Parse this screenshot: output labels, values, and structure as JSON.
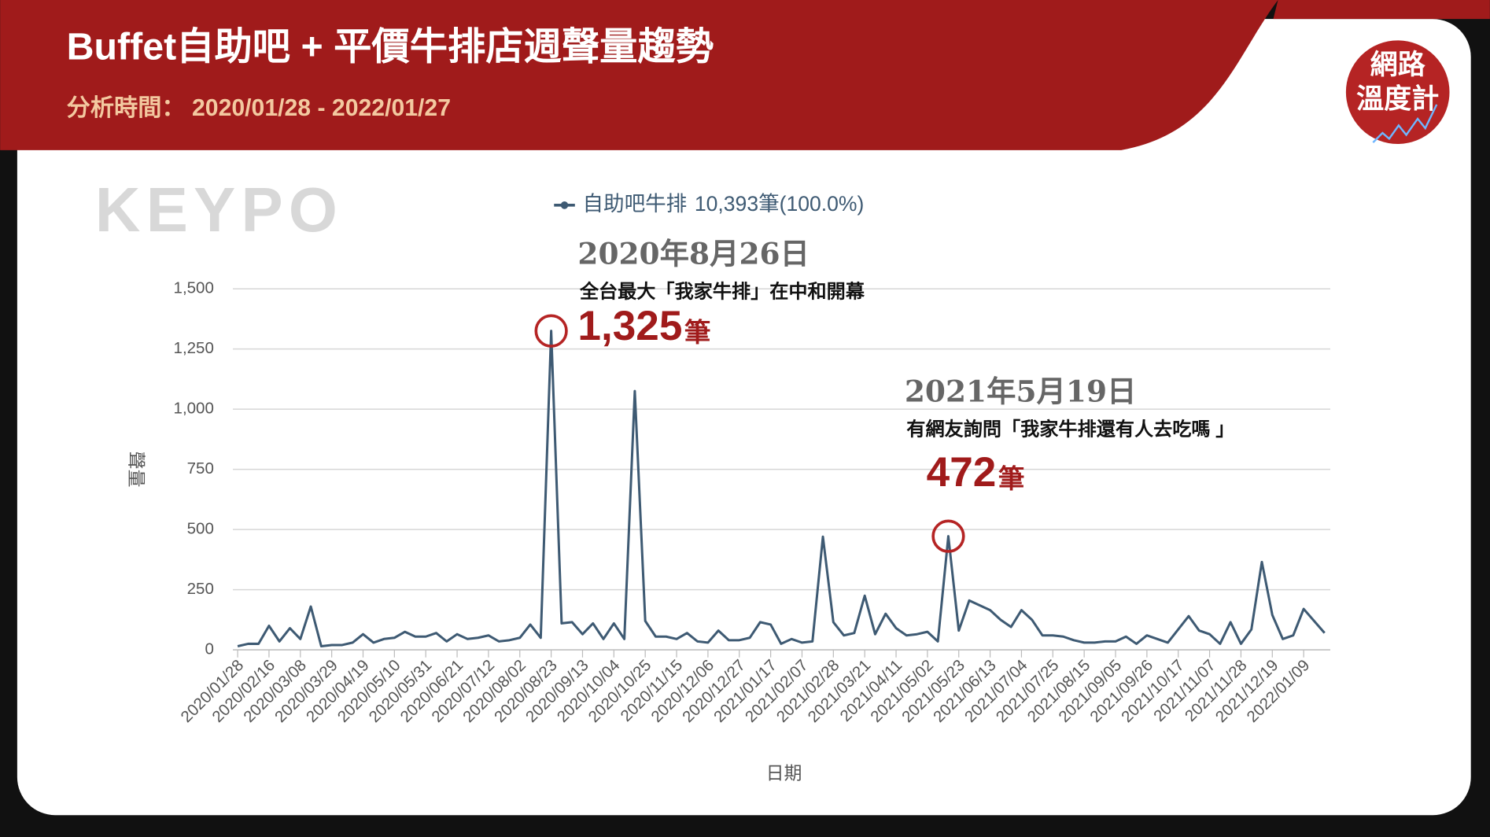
{
  "header": {
    "title": "Buffet自助吧 + 平價牛排店週聲量趨勢",
    "subtitle": "分析時間： 2020/01/28 - 2022/01/27"
  },
  "logo": {
    "line1": "網路",
    "line2": "溫度計"
  },
  "watermark": "KEYPO",
  "chart_data": {
    "type": "line",
    "categories": [
      "2020/01/28",
      null,
      null,
      "2020/02/16",
      null,
      null,
      "2020/03/08",
      null,
      null,
      "2020/03/29",
      null,
      null,
      "2020/04/19",
      null,
      null,
      "2020/05/10",
      null,
      null,
      "2020/05/31",
      null,
      null,
      "2020/06/21",
      null,
      null,
      "2020/07/12",
      null,
      null,
      "2020/08/02",
      null,
      null,
      "2020/08/23",
      null,
      null,
      "2020/09/13",
      null,
      null,
      "2020/10/04",
      null,
      null,
      "2020/10/25",
      null,
      null,
      "2020/11/15",
      null,
      null,
      "2020/12/06",
      null,
      null,
      "2020/12/27",
      null,
      null,
      "2021/01/17",
      null,
      null,
      "2021/02/07",
      null,
      null,
      "2021/02/28",
      null,
      null,
      "2021/03/21",
      null,
      null,
      "2021/04/11",
      null,
      null,
      "2021/05/02",
      null,
      null,
      "2021/05/23",
      null,
      null,
      "2021/06/13",
      null,
      null,
      "2021/07/04",
      null,
      null,
      "2021/07/25",
      null,
      null,
      "2021/08/15",
      null,
      null,
      "2021/09/05",
      null,
      null,
      "2021/09/26",
      null,
      null,
      "2021/10/17",
      null,
      null,
      "2021/11/07",
      null,
      null,
      "2021/11/28",
      null,
      null,
      "2021/12/19",
      null,
      null,
      "2022/01/09",
      null,
      null
    ],
    "series": [
      {
        "name": "自助吧牛排",
        "legend_note": "10,393筆(100.0%)",
        "color": "#3e5a73",
        "values": [
          15,
          25,
          25,
          100,
          35,
          90,
          45,
          180,
          15,
          20,
          20,
          30,
          65,
          30,
          45,
          50,
          75,
          55,
          55,
          70,
          35,
          65,
          45,
          50,
          60,
          35,
          40,
          50,
          105,
          50,
          1325,
          110,
          115,
          65,
          110,
          45,
          110,
          45,
          1075,
          120,
          55,
          55,
          45,
          70,
          35,
          30,
          80,
          40,
          40,
          50,
          115,
          105,
          25,
          45,
          30,
          35,
          470,
          115,
          60,
          70,
          225,
          65,
          150,
          90,
          60,
          65,
          75,
          35,
          472,
          80,
          205,
          185,
          165,
          125,
          95,
          165,
          125,
          60,
          60,
          55,
          40,
          30,
          30,
          35,
          35,
          55,
          25,
          60,
          45,
          30,
          85,
          140,
          80,
          65,
          25,
          115,
          25,
          85,
          365,
          145,
          45,
          60,
          170,
          120,
          70
        ]
      }
    ],
    "ylim": [
      0,
      1500
    ],
    "yticks": [
      0,
      250,
      500,
      750,
      {
        "value": 1000,
        "label": "1,000"
      },
      {
        "value": 1250,
        "label": "1,250"
      },
      {
        "value": 1500,
        "label": "1,500"
      }
    ],
    "grid": true,
    "xlabel": "日期",
    "ylabel": "聲量",
    "annotations": [
      {
        "date": "2020年8月26日",
        "text": "全台最大「我家牛排」在中和開幕",
        "value": 1325,
        "value_label": "1,325",
        "unit": "筆"
      },
      {
        "date": "2021年5月19日",
        "text": "有網友詢問「我家牛排還有人去吃嗎 」",
        "value": 472,
        "value_label": "472",
        "unit": "筆"
      }
    ]
  }
}
